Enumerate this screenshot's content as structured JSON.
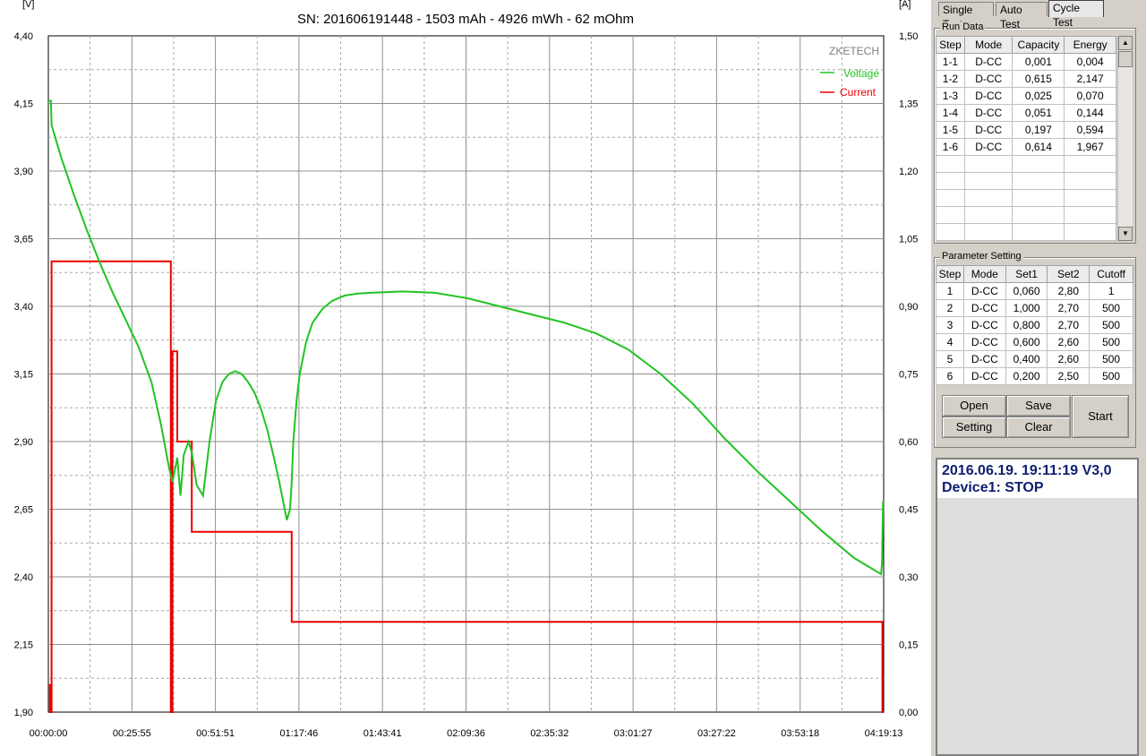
{
  "chart": {
    "title": "SN: 201606191448 - 1503 mAh - 4926 mWh - 62 mOhm",
    "left_unit": "[V]",
    "right_unit": "[A]",
    "watermark": "ZKETECH",
    "legend": {
      "voltage": "Voltage",
      "current": "Current"
    },
    "y_left_ticks": [
      "4,40",
      "4,15",
      "3,90",
      "3,65",
      "3,40",
      "3,15",
      "2,90",
      "2,65",
      "2,40",
      "2,15",
      "1,90"
    ],
    "y_right_ticks": [
      "1,50",
      "1,35",
      "1,20",
      "1,05",
      "0,90",
      "0,75",
      "0,60",
      "0,45",
      "0,30",
      "0,15",
      "0,00"
    ],
    "x_ticks": [
      "00:00:00",
      "00:25:55",
      "00:51:51",
      "01:17:46",
      "01:43:41",
      "02:09:36",
      "02:35:32",
      "03:01:27",
      "03:27:22",
      "03:53:18",
      "04:19:13"
    ]
  },
  "chart_data": {
    "type": "line",
    "title": "SN: 201606191448 - 1503 mAh - 4926 mWh - 62 mOhm",
    "x_unit": "elapsed time (min)",
    "xlim": [
      0,
      259.2
    ],
    "y_left": {
      "label": "[V]",
      "lim": [
        1.9,
        4.4
      ]
    },
    "y_right": {
      "label": "[A]",
      "lim": [
        0,
        1.5
      ]
    },
    "grid": true,
    "legend_position": "top-right",
    "colors": {
      "voltage": "#22c322",
      "current": "#ee0000"
    },
    "series": [
      {
        "name": "Voltage",
        "axis": "left",
        "x": [
          0,
          0.8,
          1,
          4,
          8,
          12,
          16,
          20,
          24,
          28,
          32,
          35,
          37.5,
          38.5,
          39.5,
          40,
          41,
          42,
          43.5,
          44.5,
          46,
          48,
          50,
          52,
          54,
          56,
          58,
          60,
          62,
          64,
          66,
          68,
          70,
          71.5,
          73,
          74,
          75,
          75.5,
          76,
          77,
          78,
          80,
          82,
          85,
          88,
          92,
          96,
          100,
          110,
          120,
          130,
          140,
          150,
          160,
          170,
          180,
          190,
          200,
          210,
          220,
          230,
          240,
          250,
          258.4,
          258.7,
          259
        ],
        "y": [
          4.16,
          4.16,
          4.07,
          3.95,
          3.81,
          3.68,
          3.56,
          3.45,
          3.35,
          3.25,
          3.12,
          2.96,
          2.8,
          2.75,
          2.81,
          2.84,
          2.7,
          2.85,
          2.9,
          2.86,
          2.74,
          2.7,
          2.9,
          3.05,
          3.12,
          3.15,
          3.16,
          3.15,
          3.12,
          3.08,
          3.02,
          2.94,
          2.84,
          2.76,
          2.67,
          2.61,
          2.65,
          2.75,
          2.9,
          3.05,
          3.15,
          3.27,
          3.34,
          3.39,
          3.42,
          3.44,
          3.447,
          3.45,
          3.455,
          3.45,
          3.43,
          3.4,
          3.37,
          3.34,
          3.3,
          3.24,
          3.15,
          3.04,
          2.91,
          2.79,
          2.68,
          2.57,
          2.47,
          2.41,
          2.45,
          2.68
        ]
      },
      {
        "name": "Current",
        "axis": "right",
        "x": [
          0,
          0.5,
          0.5,
          1,
          1,
          38,
          38,
          38.5,
          38.5,
          40,
          40,
          44.5,
          44.5,
          75.5,
          75.5,
          258.8,
          258.8,
          259.2
        ],
        "y": [
          0.06,
          0.06,
          0,
          0,
          1.0,
          1.0,
          0,
          0,
          0.8,
          0.8,
          0.6,
          0.6,
          0.4,
          0.4,
          0.2,
          0.2,
          0,
          0
        ]
      }
    ]
  },
  "tabs": {
    "single": "Single Test",
    "auto": "Auto Test",
    "cycle": "Cycle Test"
  },
  "run_data": {
    "title": "Run Data",
    "headers": [
      "Step",
      "Mode",
      "Capacity",
      "Energy"
    ],
    "rows": [
      [
        "1-1",
        "D-CC",
        "0,001",
        "0,004"
      ],
      [
        "1-2",
        "D-CC",
        "0,615",
        "2,147"
      ],
      [
        "1-3",
        "D-CC",
        "0,025",
        "0,070"
      ],
      [
        "1-4",
        "D-CC",
        "0,051",
        "0,144"
      ],
      [
        "1-5",
        "D-CC",
        "0,197",
        "0,594"
      ],
      [
        "1-6",
        "D-CC",
        "0,614",
        "1,967"
      ]
    ]
  },
  "parameter_setting": {
    "title": "Parameter Setting",
    "headers": [
      "Step",
      "Mode",
      "Set1",
      "Set2",
      "Cutoff"
    ],
    "rows": [
      [
        "1",
        "D-CC",
        "0,060",
        "2,80",
        "1"
      ],
      [
        "2",
        "D-CC",
        "1,000",
        "2,70",
        "500"
      ],
      [
        "3",
        "D-CC",
        "0,800",
        "2,70",
        "500"
      ],
      [
        "4",
        "D-CC",
        "0,600",
        "2,60",
        "500"
      ],
      [
        "5",
        "D-CC",
        "0,400",
        "2,60",
        "500"
      ],
      [
        "6",
        "D-CC",
        "0,200",
        "2,50",
        "500"
      ]
    ]
  },
  "buttons": {
    "open": "Open",
    "save": "Save",
    "setting": "Setting",
    "clear": "Clear",
    "start": "Start"
  },
  "status": {
    "line1": "2016.06.19. 19:11:19  V3,0",
    "line2": "Device1: STOP"
  }
}
